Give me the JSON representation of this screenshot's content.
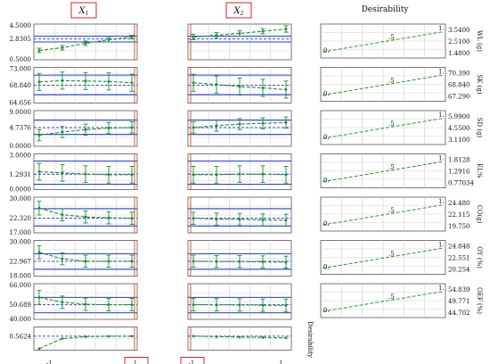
{
  "chart_data": {
    "type": "line",
    "title": "",
    "factors": [
      "X1",
      "X2"
    ],
    "desirability_title": "Desirability",
    "desirability_row_label": "Desirability",
    "x_tick_labels": [
      "-1.",
      "1."
    ],
    "x_highlight_labels": [
      "1.",
      "-1."
    ],
    "desirability_axis_ticks": [
      "0.",
      ".5",
      "1."
    ],
    "responses": [
      {
        "name": "WL (g)",
        "ylim": [
          0.5,
          4.5
        ],
        "y_ticks": [
          "4.5000",
          "2.8305",
          "0.5000"
        ],
        "dashed_level": 2.8305,
        "band": [
          2.5,
          3.15
        ],
        "x1_curve": [
          1.55,
          1.85,
          2.35,
          2.75,
          3.05
        ],
        "x1_err": [
          0.25,
          0.25,
          0.25,
          0.25,
          0.2
        ],
        "x2_curve": [
          3.05,
          3.25,
          3.45,
          3.7,
          3.95
        ],
        "x2_err": [
          0.3,
          0.3,
          0.3,
          0.3,
          0.35
        ],
        "desirability_ticks": [
          "3.5400",
          "2.5100",
          "1.4800"
        ],
        "desirability_curve": [
          0.1,
          0.9
        ]
      },
      {
        "name": "SK (g)",
        "ylim": [
          64.656,
          73.0
        ],
        "y_ticks": [
          "73.000",
          "68.840",
          "64.656"
        ],
        "dashed_level": 68.84,
        "band": [
          66.6,
          71.2
        ],
        "x1_curve": [
          69.6,
          69.9,
          69.8,
          69.7,
          69.4
        ],
        "x1_err": [
          2.0,
          2.0,
          2.0,
          2.0,
          2.0
        ],
        "x2_curve": [
          69.4,
          69.0,
          68.5,
          68.2,
          67.8
        ],
        "x2_err": [
          2.0,
          2.0,
          2.0,
          2.0,
          2.0
        ],
        "desirability_ticks": [
          "70.390",
          "68.840",
          "67.290"
        ],
        "desirability_curve": [
          0.1,
          0.9
        ]
      },
      {
        "name": "SD (g)",
        "ylim": [
          0.0,
          9.0
        ],
        "y_ticks": [
          "9.0000",
          "4.7376",
          "0.0000"
        ],
        "dashed_level": 4.7376,
        "band": [
          3.0,
          6.6
        ],
        "x1_curve": [
          2.8,
          3.6,
          4.2,
          4.6,
          4.75
        ],
        "x1_err": [
          1.4,
          1.4,
          1.4,
          1.4,
          1.4
        ],
        "x2_curve": [
          4.75,
          5.2,
          5.6,
          5.8,
          6.0
        ],
        "x2_err": [
          1.4,
          1.4,
          1.4,
          1.4,
          1.4
        ],
        "desirability_ticks": [
          "5.9900",
          "4.5500",
          "3.1100"
        ],
        "desirability_curve": [
          0.1,
          0.9
        ]
      },
      {
        "name": "EL%",
        "ylim": [
          0.0,
          3.0
        ],
        "y_ticks": [
          "3.0000",
          "1.2931",
          "0.0000"
        ],
        "dashed_level": 1.2931,
        "band": [
          0.45,
          2.4
        ],
        "x1_curve": [
          1.5,
          1.4,
          1.3,
          1.25,
          1.25
        ],
        "x1_err": [
          0.7,
          0.7,
          0.7,
          0.7,
          0.7
        ],
        "x2_curve": [
          1.25,
          1.25,
          1.3,
          1.3,
          1.25
        ],
        "x2_err": [
          0.7,
          0.7,
          0.7,
          0.7,
          0.7
        ],
        "desirability_ticks": [
          "1.8128",
          "1.2916",
          "0.77034"
        ],
        "desirability_curve": [
          0.1,
          0.9
        ]
      },
      {
        "name": "CO(g)",
        "ylim": [
          17.0,
          30.0
        ],
        "y_ticks": [
          "30.000",
          "22.320",
          "17.000"
        ],
        "dashed_level": 22.32,
        "band": [
          19.5,
          25.8
        ],
        "x1_curve": [
          26.0,
          23.6,
          22.8,
          22.5,
          22.3
        ],
        "x1_err": [
          2.5,
          2.2,
          2.2,
          2.2,
          2.2
        ],
        "x2_curve": [
          22.3,
          22.0,
          21.9,
          21.7,
          21.6
        ],
        "x2_err": [
          2.2,
          2.2,
          2.2,
          2.2,
          2.2
        ],
        "desirability_ticks": [
          "24.480",
          "22.115",
          "19.750"
        ],
        "desirability_curve": [
          0.1,
          0.9
        ]
      },
      {
        "name": "OY (%)",
        "ylim": [
          18.0,
          30.0
        ],
        "y_ticks": [
          "30.000",
          "22.967",
          "18.000"
        ],
        "dashed_level": 22.967,
        "band": [
          20.3,
          25.5
        ],
        "x1_curve": [
          26.0,
          23.8,
          23.0,
          23.0,
          23.0
        ],
        "x1_err": [
          2.2,
          2.0,
          2.0,
          2.0,
          2.0
        ],
        "x2_curve": [
          23.0,
          22.9,
          22.9,
          22.8,
          22.7
        ],
        "x2_err": [
          2.0,
          2.0,
          2.0,
          2.0,
          2.0
        ],
        "desirability_ticks": [
          "24.848",
          "22.551",
          "20.254"
        ],
        "desirability_curve": [
          0.1,
          0.9
        ]
      },
      {
        "name": "OEF (%)",
        "ylim": [
          40.0,
          66.0
        ],
        "y_ticks": [
          "66.000",
          "50.689",
          "40.000"
        ],
        "dashed_level": 50.689,
        "band": [
          44.8,
          56.0
        ],
        "x1_curve": [
          56.0,
          52.5,
          51.0,
          50.7,
          50.7
        ],
        "x1_err": [
          5.0,
          4.5,
          4.5,
          4.5,
          4.5
        ],
        "x2_curve": [
          50.7,
          50.6,
          50.5,
          50.3,
          50.2
        ],
        "x2_err": [
          4.5,
          4.5,
          4.5,
          4.5,
          4.5
        ],
        "desirability_ticks": [
          "54.839",
          "49.771",
          "44.702"
        ],
        "desirability_curve": [
          0.1,
          0.9
        ]
      }
    ],
    "desirability": {
      "ylim": [
        0.2,
        0.8
      ],
      "y_ticks": [
        "0.5624"
      ],
      "dashed_level": 0.5624,
      "x1_curve": [
        0.24,
        0.5,
        0.55,
        0.56,
        0.5624
      ],
      "x2_curve": [
        0.5624,
        0.55,
        0.54,
        0.53,
        0.52
      ]
    },
    "colors": {
      "curve": "#1a8f2a",
      "error_bar": "#1a8f2a",
      "band": "#1f3fd9",
      "dashed": "#1f3fd9",
      "current_x": "#d35a2a",
      "desirability_curve": "#2a9a2a",
      "highlight_box": "#e02020"
    }
  }
}
